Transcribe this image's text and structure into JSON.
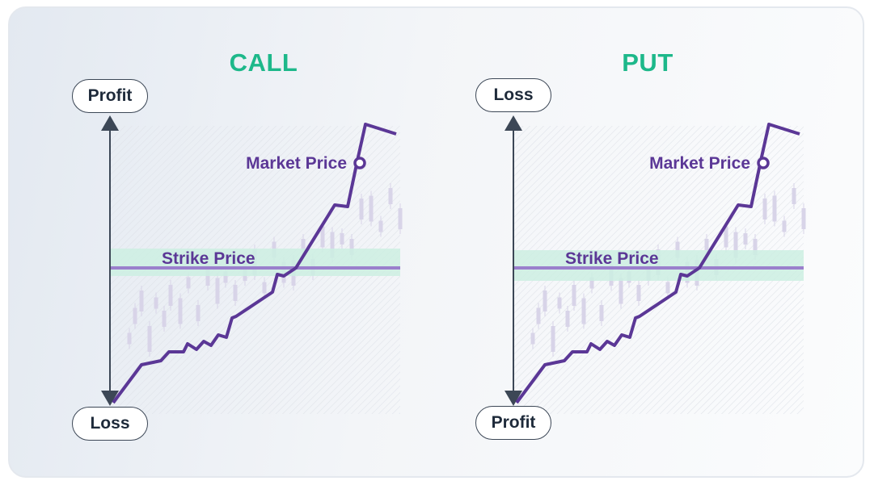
{
  "colors": {
    "title": "#1db88a",
    "line": "#5b3796",
    "strike_band": "#cdeee2",
    "axis": "#3c4756",
    "candles": "#d8d4e8"
  },
  "panels": [
    {
      "title": "CALL",
      "axis_top_label": "Profit",
      "axis_bottom_label": "Loss",
      "market_label": "Market Price",
      "strike_label": "Strike Price"
    },
    {
      "title": "PUT",
      "axis_top_label": "Loss",
      "axis_bottom_label": "Profit",
      "market_label": "Market Price",
      "strike_label": "Strike Price"
    }
  ]
}
